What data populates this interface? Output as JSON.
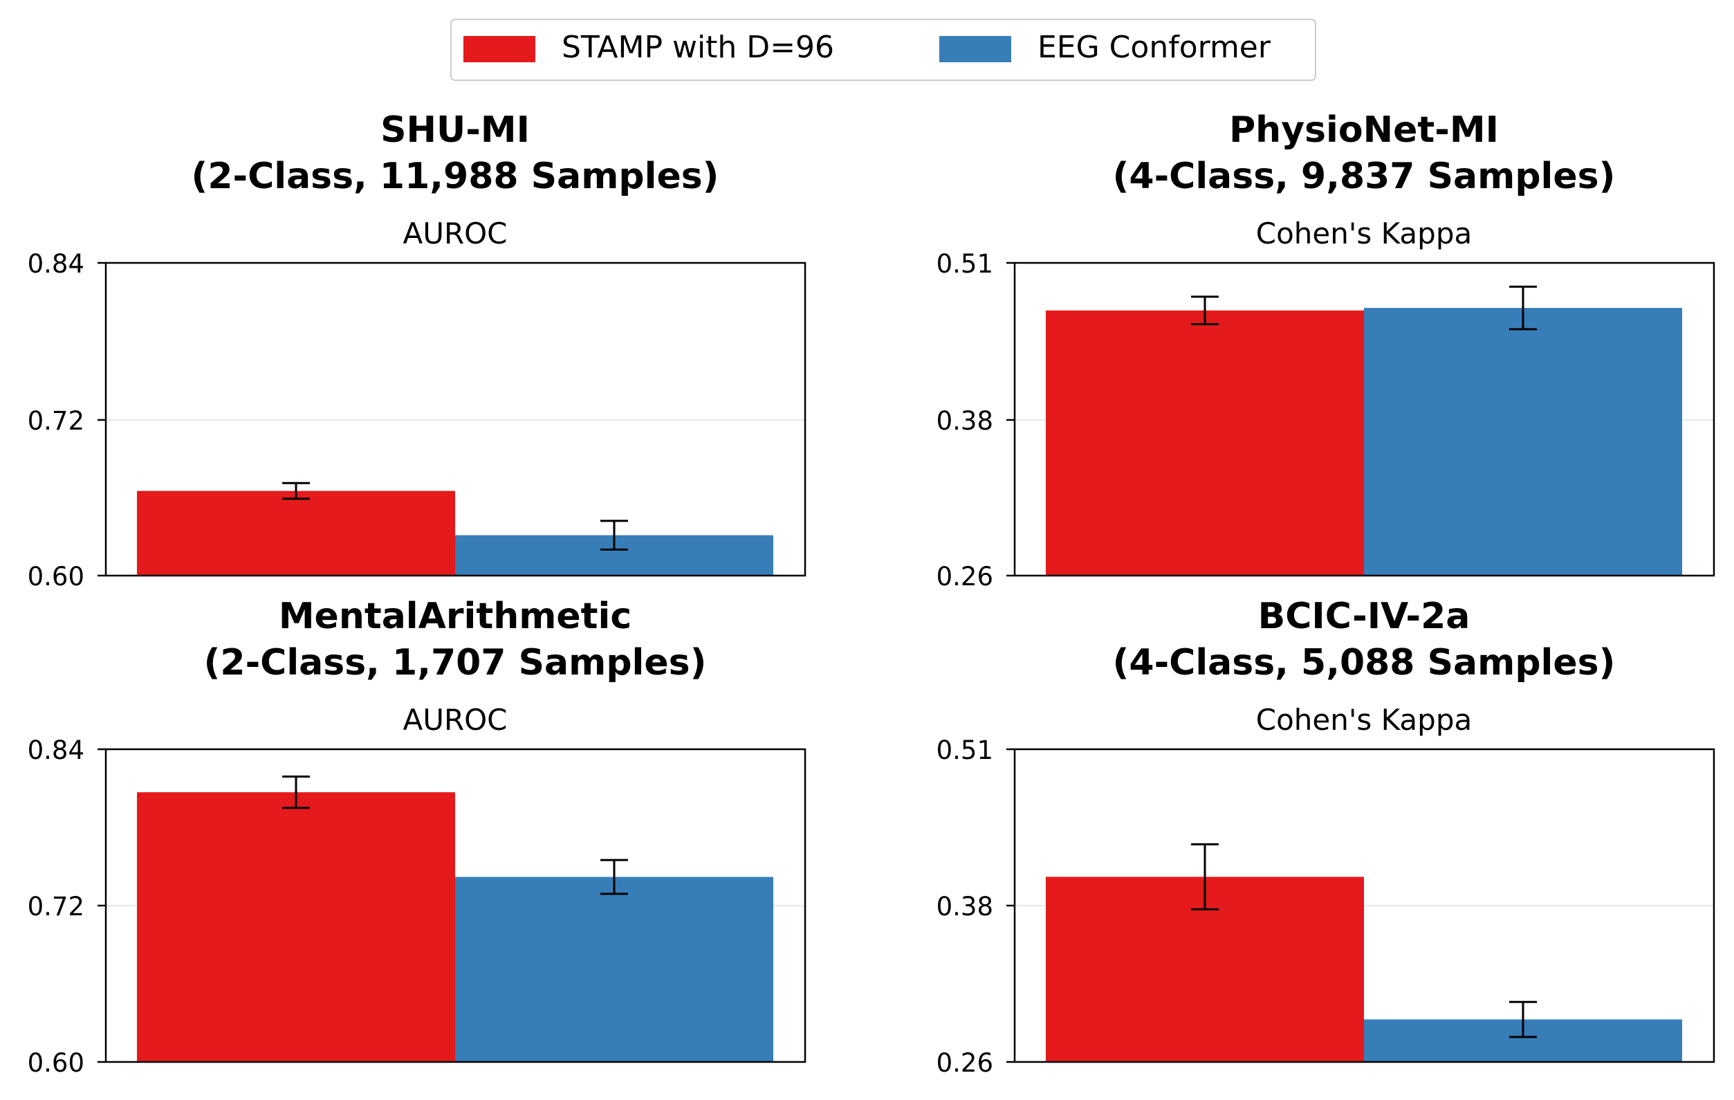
{
  "legend": {
    "entries": [
      {
        "label": "STAMP with D=96",
        "color": "#e41a1c"
      },
      {
        "label": "EEG Conformer",
        "color": "#377eb8"
      }
    ]
  },
  "chart_data": [
    {
      "type": "bar",
      "title_line1": "SHU-MI",
      "title_line2": "(2-Class, 11,988 Samples)",
      "subtitle": "AUROC",
      "ylim": [
        0.6,
        0.84
      ],
      "yticks": [
        "0.84",
        "0.72",
        "0.60"
      ],
      "series": [
        {
          "name": "STAMP with D=96",
          "value": 0.665,
          "err": 0.006
        },
        {
          "name": "EEG Conformer",
          "value": 0.631,
          "err": 0.011
        }
      ]
    },
    {
      "type": "bar",
      "title_line1": "PhysioNet-MI",
      "title_line2": "(4-Class, 9,837 Samples)",
      "subtitle": "Cohen's Kappa",
      "ylim": [
        0.26,
        0.51
      ],
      "yticks": [
        "0.51",
        "0.38",
        "0.26"
      ],
      "series": [
        {
          "name": "STAMP with D=96",
          "value": 0.472,
          "err": 0.011
        },
        {
          "name": "EEG Conformer",
          "value": 0.474,
          "err": 0.017
        }
      ]
    },
    {
      "type": "bar",
      "title_line1": "MentalArithmetic",
      "title_line2": "(2-Class, 1,707 Samples)",
      "subtitle": "AUROC",
      "ylim": [
        0.6,
        0.84
      ],
      "yticks": [
        "0.84",
        "0.72",
        "0.60"
      ],
      "series": [
        {
          "name": "STAMP with D=96",
          "value": 0.807,
          "err": 0.012
        },
        {
          "name": "EEG Conformer",
          "value": 0.742,
          "err": 0.013
        }
      ]
    },
    {
      "type": "bar",
      "title_line1": "BCIC-IV-2a",
      "title_line2": "(4-Class, 5,088 Samples)",
      "subtitle": "Cohen's Kappa",
      "ylim": [
        0.26,
        0.51
      ],
      "yticks": [
        "0.51",
        "0.38",
        "0.26"
      ],
      "series": [
        {
          "name": "STAMP with D=96",
          "value": 0.408,
          "err": 0.026
        },
        {
          "name": "EEG Conformer",
          "value": 0.294,
          "err": 0.014
        }
      ]
    }
  ]
}
